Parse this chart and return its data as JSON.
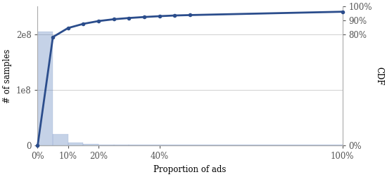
{
  "title": "",
  "xlabel": "Proportion of ads",
  "ylabel_left": "# of samples",
  "ylabel_right": "CDF",
  "bar_color": "#5b7fbb",
  "bar_alpha": 0.35,
  "line_color": "#2b4d8c",
  "line_width": 2.0,
  "marker": "o",
  "marker_size": 4,
  "background_color": "#ffffff",
  "grid_color": "#d0d0d0",
  "bar_edges": [
    0.0,
    0.05,
    0.1,
    0.15,
    0.2,
    0.25,
    0.3,
    1.0
  ],
  "bar_heights": [
    205000000.0,
    20000000.0,
    5500000.0,
    3000000.0,
    2000000.0,
    1500000.0,
    1000000.0
  ],
  "cdf_x": [
    0.0,
    0.05,
    0.1,
    0.15,
    0.2,
    0.25,
    0.3,
    0.35,
    0.4,
    0.45,
    0.5,
    1.0
  ],
  "cdf_y": [
    0.0,
    0.78,
    0.845,
    0.875,
    0.895,
    0.908,
    0.917,
    0.924,
    0.93,
    0.935,
    0.938,
    0.962
  ],
  "xlim": [
    0,
    1.0
  ],
  "ylim_left": [
    0,
    250000000.0
  ],
  "ylim_right": [
    0,
    1.0
  ],
  "xticks": [
    0.0,
    0.1,
    0.2,
    0.4,
    1.0
  ],
  "xtick_labels": [
    "0%",
    "10%",
    "20%",
    "40%",
    "100%"
  ],
  "yticks_left": [
    0,
    100000000.0,
    200000000.0
  ],
  "ytick_labels_left": [
    "0",
    "1e8",
    "2e8"
  ],
  "yticks_right": [
    0.0,
    0.8,
    0.9,
    1.0
  ],
  "ytick_labels_right": [
    "0%",
    "80%",
    "90%",
    "100%"
  ],
  "font_size": 8.5,
  "font_family": "DejaVu Serif"
}
